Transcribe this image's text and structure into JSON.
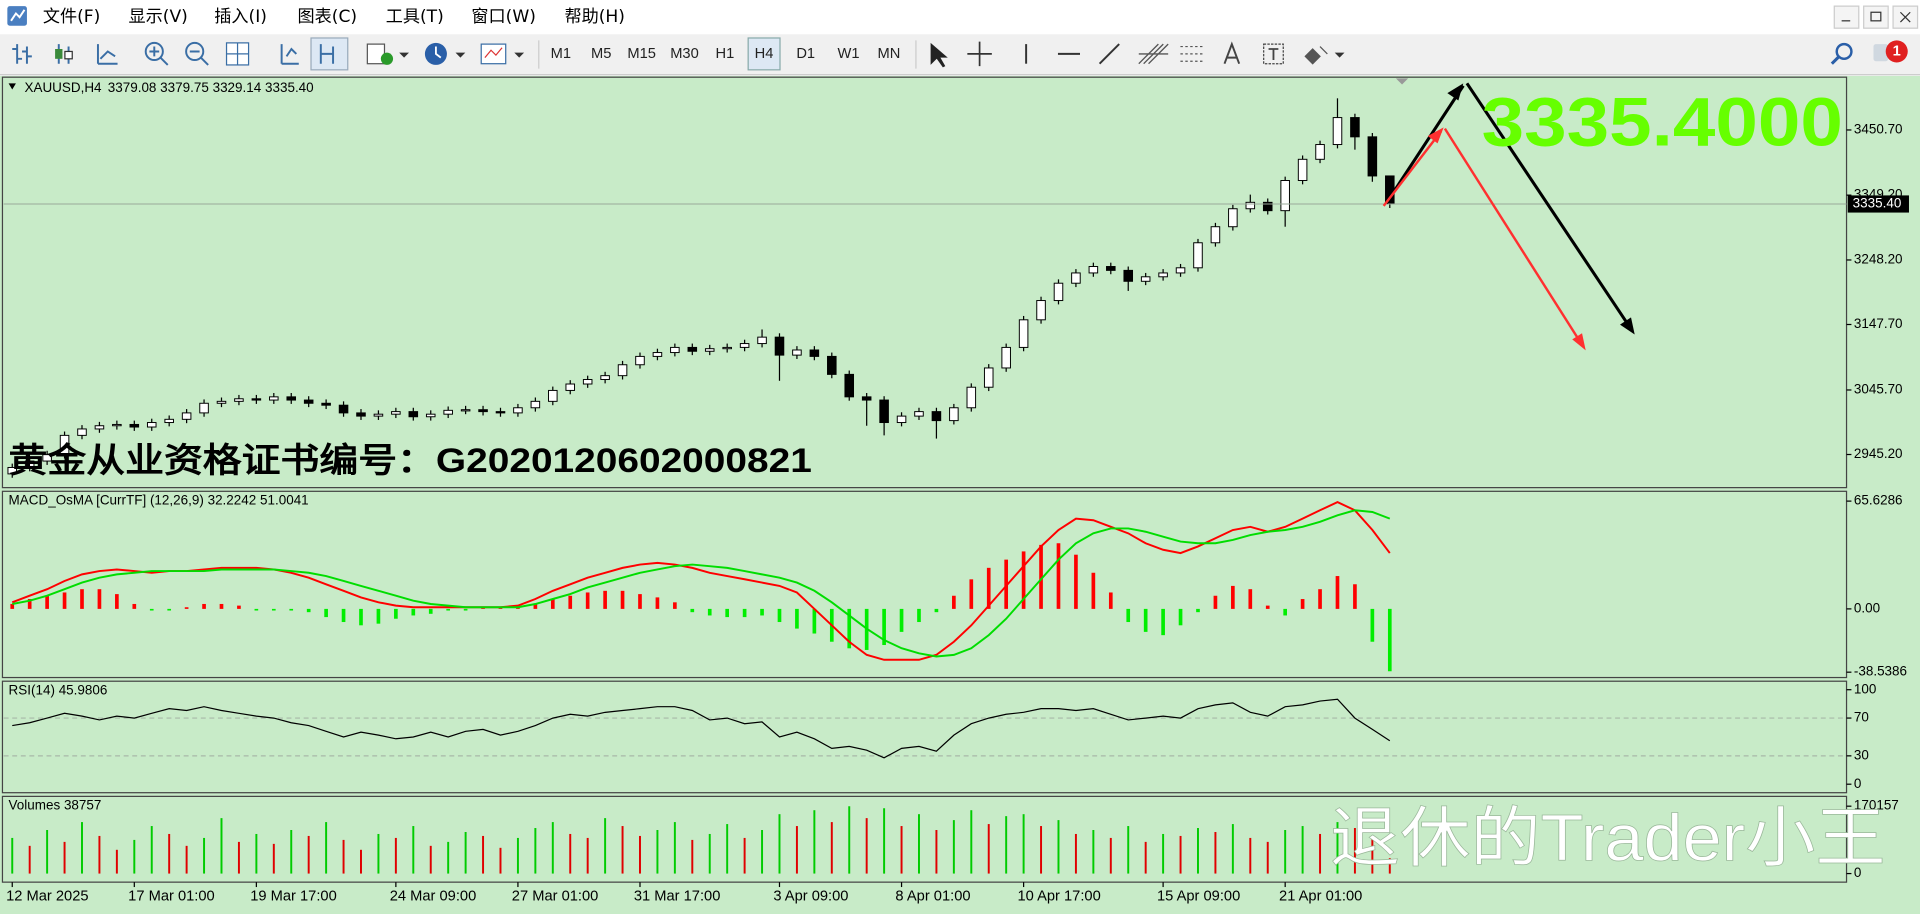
{
  "menu": {
    "items": [
      "文件(F)",
      "显示(V)",
      "插入(I)",
      "图表(C)",
      "工具(T)",
      "窗口(W)",
      "帮助(H)"
    ]
  },
  "toolbar": {
    "timeframes": [
      "M1",
      "M5",
      "M15",
      "M30",
      "H1",
      "H4",
      "D1",
      "W1",
      "MN"
    ],
    "active_timeframe": "H4",
    "notification_count": 1
  },
  "chart_data": [
    {
      "type": "candlestick",
      "title": "XAUUSD,H4",
      "ohlc_header": "3379.08 3379.75 3329.14 3335.40",
      "categories": [
        "12 Mar 2025",
        null,
        null,
        null,
        null,
        null,
        null,
        "17 Mar 01:00",
        null,
        null,
        null,
        null,
        null,
        null,
        "19 Mar 17:00",
        null,
        null,
        null,
        null,
        null,
        null,
        null,
        "24 Mar 09:00",
        null,
        null,
        null,
        null,
        null,
        null,
        "27 Mar 01:00",
        null,
        null,
        null,
        null,
        null,
        null,
        "31 Mar 17:00",
        null,
        null,
        null,
        null,
        null,
        null,
        null,
        "3 Apr 09:00",
        null,
        null,
        null,
        null,
        null,
        null,
        "8 Apr 01:00",
        null,
        null,
        null,
        null,
        null,
        null,
        "10 Apr 17:00",
        null,
        null,
        null,
        null,
        null,
        null,
        null,
        "15 Apr 09:00",
        null,
        null,
        null,
        null,
        null,
        null,
        "21 Apr 01:00",
        null,
        null,
        null,
        null,
        null,
        null
      ],
      "open": [
        2915,
        2925,
        2935,
        2945,
        2975,
        2985,
        2990,
        2992,
        2988,
        2995,
        3000,
        3010,
        3025,
        3028,
        3032,
        3030,
        3035,
        3030,
        3025,
        3022,
        3010,
        3005,
        3008,
        3012,
        3004,
        3008,
        3014,
        3015,
        3012,
        3010,
        3018,
        3028,
        3045,
        3055,
        3062,
        3068,
        3085,
        3098,
        3104,
        3112,
        3106,
        3110,
        3112,
        3118,
        3128,
        3100,
        3108,
        3098,
        3070,
        3035,
        3030,
        2995,
        3005,
        3012,
        2998,
        3018,
        3050,
        3080,
        3112,
        3155,
        3185,
        3212,
        3228,
        3238,
        3232,
        3215,
        3222,
        3228,
        3236,
        3275,
        3300,
        3328,
        3338,
        3325,
        3372,
        3405,
        3428,
        3470,
        3440,
        3379.08
      ],
      "high": [
        2931,
        2941,
        2951,
        2981,
        2991,
        2996,
        2998,
        2998,
        3001,
        3006,
        3016,
        3031,
        3034,
        3038,
        3038,
        3041,
        3041,
        3036,
        3031,
        3028,
        3016,
        3014,
        3018,
        3018,
        3014,
        3020,
        3021,
        3021,
        3018,
        3024,
        3034,
        3051,
        3061,
        3068,
        3074,
        3091,
        3104,
        3110,
        3118,
        3118,
        3116,
        3118,
        3124,
        3140,
        3134,
        3114,
        3114,
        3104,
        3076,
        3041,
        3036,
        3011,
        3018,
        3018,
        3024,
        3056,
        3086,
        3118,
        3161,
        3191,
        3218,
        3234,
        3244,
        3244,
        3238,
        3228,
        3234,
        3242,
        3281,
        3306,
        3334,
        3350,
        3344,
        3378,
        3411,
        3434,
        3500,
        3476,
        3446,
        3379.75
      ],
      "low": [
        2909,
        2919,
        2929,
        2939,
        2969,
        2979,
        2984,
        2982,
        2982,
        2989,
        2994,
        3004,
        3019,
        3022,
        3024,
        3024,
        3024,
        3019,
        3016,
        3004,
        2999,
        2999,
        3002,
        2998,
        2998,
        3002,
        3008,
        3006,
        3004,
        3004,
        3012,
        3022,
        3039,
        3049,
        3056,
        3062,
        3079,
        3092,
        3098,
        3100,
        3100,
        3104,
        3106,
        3112,
        3060,
        3094,
        3092,
        3064,
        3029,
        2990,
        2975,
        2989,
        2999,
        2970,
        2992,
        3012,
        3044,
        3074,
        3106,
        3149,
        3179,
        3206,
        3222,
        3226,
        3200,
        3209,
        3216,
        3222,
        3230,
        3269,
        3294,
        3322,
        3319,
        3300,
        3366,
        3399,
        3422,
        3420,
        3370,
        3329.14
      ],
      "close": [
        2925,
        2935,
        2945,
        2975,
        2985,
        2990,
        2992,
        2988,
        2995,
        3000,
        3010,
        3025,
        3028,
        3032,
        3030,
        3035,
        3030,
        3025,
        3022,
        3010,
        3005,
        3008,
        3012,
        3004,
        3008,
        3014,
        3015,
        3012,
        3010,
        3018,
        3028,
        3045,
        3055,
        3062,
        3068,
        3085,
        3098,
        3104,
        3112,
        3106,
        3110,
        3112,
        3118,
        3128,
        3100,
        3108,
        3098,
        3070,
        3035,
        3030,
        2995,
        3005,
        3012,
        2998,
        3018,
        3050,
        3080,
        3112,
        3155,
        3185,
        3212,
        3228,
        3238,
        3232,
        3215,
        3222,
        3228,
        3236,
        3275,
        3300,
        3328,
        3338,
        3325,
        3372,
        3405,
        3428,
        3470,
        3440,
        3379.08,
        3335.4
      ],
      "up_color": "#ffffff",
      "down_color": "#000000",
      "ylim": [
        2893.6,
        3531.0
      ],
      "yticks": [
        {
          "value": 3450.7,
          "label": "3450.70"
        },
        {
          "value": 3349.2,
          "label": "3349.20"
        },
        {
          "value": 3248.2,
          "label": "3248.20"
        },
        {
          "value": 3147.7,
          "label": "3147.70"
        },
        {
          "value": 3045.7,
          "label": "3045.70"
        },
        {
          "value": 2945.2,
          "label": "2945.20"
        }
      ],
      "price_label": "3335.40",
      "annotations": {
        "big_price": "3335.4000",
        "watermark": "黄金从业资格证书编号：G2020120602000821",
        "signature": "退休的Trader小王"
      }
    },
    {
      "type": "macd",
      "title": "MACD_OsMA [CurrTF] (12,26,9) 32.2242 51.0041",
      "histogram": [
        3,
        6,
        8,
        10,
        12,
        12,
        9,
        3,
        -1,
        -1,
        1,
        3,
        3,
        2,
        -1,
        -1,
        -1,
        -2,
        -5,
        -8,
        -10,
        -9,
        -6,
        -4,
        -3,
        -1,
        -1,
        0.5,
        1,
        1,
        3,
        6,
        8,
        10,
        11,
        11,
        9,
        7,
        4,
        -2,
        -4,
        -5,
        -5,
        -4,
        -8,
        -12,
        -15,
        -20,
        -24,
        -25,
        -22,
        -14,
        -8,
        -2,
        8,
        18,
        25,
        30,
        35,
        39,
        40,
        33,
        22,
        10,
        -8,
        -14,
        -16,
        -10,
        -2,
        8,
        14,
        12,
        2,
        -4,
        6,
        12,
        20,
        15,
        -20,
        -38
      ],
      "macd": [
        4,
        8,
        12,
        17,
        21,
        23,
        24,
        23,
        22,
        23,
        23,
        24,
        25,
        25,
        25,
        24,
        22,
        19,
        15,
        11,
        7,
        4,
        2,
        1,
        1,
        1,
        1,
        1,
        1,
        2,
        6,
        11,
        15,
        19,
        22,
        25,
        27,
        28,
        27,
        25,
        22,
        20,
        18,
        16,
        14,
        10,
        0,
        -10,
        -20,
        -28,
        -31,
        -31,
        -31,
        -28,
        -20,
        -10,
        2,
        14,
        26,
        38,
        48,
        55,
        54,
        50,
        46,
        40,
        36,
        34,
        38,
        43,
        48,
        50,
        47,
        50,
        55,
        60,
        65,
        60,
        48,
        34
      ],
      "signal": [
        3,
        5,
        8,
        12,
        16,
        19,
        21,
        22,
        23,
        23,
        23,
        23,
        24,
        24,
        24,
        24,
        23,
        22,
        20,
        17,
        14,
        11,
        8,
        5,
        3,
        2,
        1,
        1,
        1,
        1,
        3,
        6,
        9,
        13,
        16,
        19,
        22,
        24,
        26,
        27,
        26,
        25,
        23,
        21,
        19,
        16,
        11,
        4,
        -4,
        -12,
        -19,
        -24,
        -27,
        -29,
        -28,
        -24,
        -16,
        -6,
        6,
        18,
        30,
        40,
        46,
        49,
        49,
        47,
        44,
        41,
        40,
        40,
        42,
        45,
        47,
        48,
        50,
        53,
        57,
        60,
        59,
        55
      ],
      "up_color": "#ff0000",
      "down_color": "#00ee00",
      "macd_color": "#ff0000",
      "signal_color": "#00dd00",
      "ylim": [
        -41.8,
        71.6
      ],
      "yticks": [
        65.6286,
        {
          "value": 0,
          "label": "0.00"
        },
        -38.5386
      ]
    },
    {
      "type": "line",
      "title": "RSI(14) 45.9806",
      "values": [
        62,
        65,
        70,
        75,
        72,
        68,
        72,
        70,
        75,
        80,
        78,
        82,
        78,
        75,
        72,
        70,
        65,
        62,
        56,
        50,
        55,
        52,
        48,
        50,
        55,
        50,
        56,
        58,
        52,
        56,
        62,
        70,
        74,
        72,
        76,
        78,
        80,
        82,
        82,
        78,
        68,
        70,
        64,
        66,
        50,
        55,
        48,
        38,
        40,
        36,
        28,
        38,
        40,
        35,
        52,
        64,
        70,
        74,
        76,
        80,
        80,
        78,
        80,
        74,
        68,
        70,
        72,
        70,
        80,
        84,
        86,
        76,
        72,
        82,
        84,
        88,
        90,
        70,
        58,
        45.98
      ],
      "color": "#000000",
      "ylim": [
        -9,
        109
      ],
      "yticks": [
        100,
        70,
        30,
        0
      ],
      "levels": [
        70,
        30
      ]
    },
    {
      "type": "volume",
      "title": "Volumes 38757",
      "values": [
        90000,
        70000,
        110000,
        80000,
        130000,
        95000,
        60000,
        85000,
        120000,
        100000,
        70000,
        90000,
        140000,
        80000,
        100000,
        75000,
        110000,
        95000,
        130000,
        85000,
        60000,
        100000,
        90000,
        120000,
        70000,
        80000,
        105000,
        95000,
        65000,
        90000,
        115000,
        130000,
        100000,
        90000,
        140000,
        120000,
        95000,
        110000,
        130000,
        85000,
        100000,
        125000,
        90000,
        110000,
        150000,
        120000,
        160000,
        130000,
        170000,
        140000,
        165000,
        120000,
        150000,
        110000,
        135000,
        160000,
        125000,
        145000,
        150000,
        120000,
        135000,
        100000,
        110000,
        90000,
        120000,
        80000,
        100000,
        95000,
        115000,
        105000,
        125000,
        90000,
        80000,
        110000,
        120000,
        100000,
        130000,
        115000,
        95000,
        38757
      ],
      "up_color": "#00cc00",
      "down_color": "#e00000",
      "ylim": [
        -21657,
        194907
      ],
      "yticks": [
        170157,
        0
      ]
    }
  ]
}
